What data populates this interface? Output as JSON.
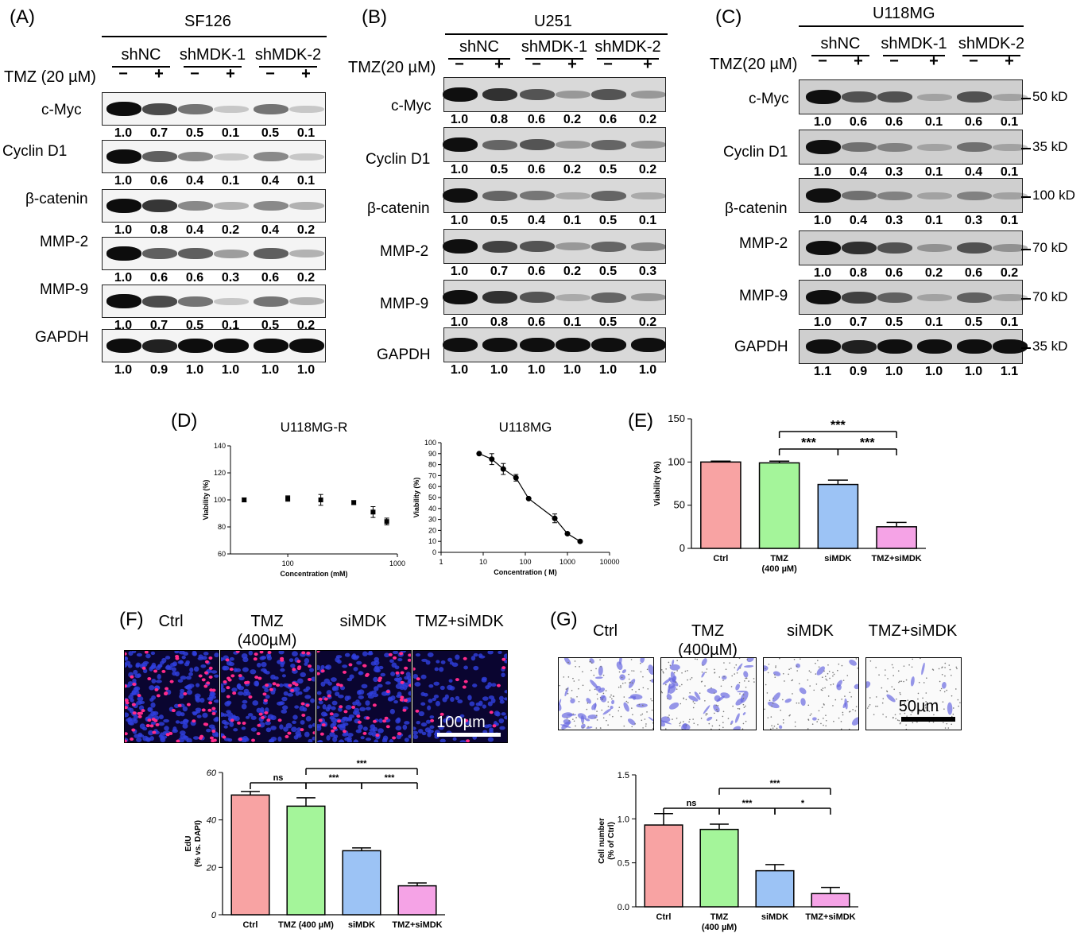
{
  "panels": {
    "A": {
      "label": "(A)",
      "cell_line": "SF126",
      "groups": [
        "shNC",
        "shMDK-1",
        "shMDK-2"
      ],
      "treatment": "TMZ (20 µM)",
      "signs": [
        "−",
        "+",
        "−",
        "+",
        "−",
        "+"
      ],
      "rows": [
        {
          "name": "c-Myc",
          "values": [
            "1.0",
            "0.7",
            "0.5",
            "0.1",
            "0.5",
            "0.1"
          ]
        },
        {
          "name": "Cyclin D1",
          "values": [
            "1.0",
            "0.6",
            "0.4",
            "0.1",
            "0.4",
            "0.1"
          ]
        },
        {
          "name": "β-catenin",
          "values": [
            "1.0",
            "0.8",
            "0.4",
            "0.2",
            "0.4",
            "0.2"
          ]
        },
        {
          "name": "MMP-2",
          "values": [
            "1.0",
            "0.6",
            "0.6",
            "0.3",
            "0.6",
            "0.2"
          ]
        },
        {
          "name": "MMP-9",
          "values": [
            "1.0",
            "0.7",
            "0.5",
            "0.1",
            "0.5",
            "0.2"
          ]
        },
        {
          "name": "GAPDH",
          "values": [
            "1.0",
            "0.9",
            "1.0",
            "1.0",
            "1.0",
            "1.0"
          ]
        }
      ]
    },
    "B": {
      "label": "(B)",
      "cell_line": "U251",
      "groups": [
        "shNC",
        "shMDK-1",
        "shMDK-2"
      ],
      "treatment": "TMZ(20 µM)",
      "signs": [
        "−",
        "+",
        "−",
        "+",
        "−",
        "+"
      ],
      "rows": [
        {
          "name": "c-Myc",
          "values": [
            "1.0",
            "0.8",
            "0.6",
            "0.2",
            "0.6",
            "0.2"
          ]
        },
        {
          "name": "Cyclin D1",
          "values": [
            "1.0",
            "0.5",
            "0.6",
            "0.2",
            "0.5",
            "0.2"
          ]
        },
        {
          "name": "β-catenin",
          "values": [
            "1.0",
            "0.5",
            "0.4",
            "0.1",
            "0.5",
            "0.1"
          ]
        },
        {
          "name": "MMP-2",
          "values": [
            "1.0",
            "0.7",
            "0.6",
            "0.2",
            "0.5",
            "0.3"
          ]
        },
        {
          "name": "MMP-9",
          "values": [
            "1.0",
            "0.8",
            "0.6",
            "0.1",
            "0.5",
            "0.2"
          ]
        },
        {
          "name": "GAPDH",
          "values": [
            "1.0",
            "1.0",
            "1.0",
            "1.0",
            "1.0",
            "1.0"
          ]
        }
      ]
    },
    "C": {
      "label": "(C)",
      "cell_line": "U118MG",
      "groups": [
        "shNC",
        "shMDK-1",
        "shMDK-2"
      ],
      "treatment": "TMZ(20 µM)",
      "signs": [
        "−",
        "+",
        "−",
        "+",
        "−",
        "+"
      ],
      "rows": [
        {
          "name": "c-Myc",
          "values": [
            "1.0",
            "0.6",
            "0.6",
            "0.1",
            "0.6",
            "0.1"
          ],
          "kd": "50 kD"
        },
        {
          "name": "Cyclin D1",
          "values": [
            "1.0",
            "0.4",
            "0.3",
            "0.1",
            "0.4",
            "0.1"
          ],
          "kd": "35 kD"
        },
        {
          "name": "β-catenin",
          "values": [
            "1.0",
            "0.4",
            "0.3",
            "0.1",
            "0.3",
            "0.1"
          ],
          "kd": "100 kD"
        },
        {
          "name": "MMP-2",
          "values": [
            "1.0",
            "0.8",
            "0.6",
            "0.2",
            "0.6",
            "0.2"
          ],
          "kd": "70 kD"
        },
        {
          "name": "MMP-9",
          "values": [
            "1.0",
            "0.7",
            "0.5",
            "0.1",
            "0.5",
            "0.1"
          ],
          "kd": "70 kD"
        },
        {
          "name": "GAPDH",
          "values": [
            "1.1",
            "0.9",
            "1.0",
            "1.0",
            "1.0",
            "1.1"
          ],
          "kd": "35 kD"
        }
      ]
    },
    "D": {
      "label": "(D)"
    },
    "E": {
      "label": "(E)"
    },
    "F": {
      "label": "(F)",
      "conditions": [
        "Ctrl",
        "TMZ\n(400µM)",
        "siMDK",
        "TMZ+siMDK"
      ],
      "scale": "100µm"
    },
    "G": {
      "label": "(G)",
      "conditions": [
        "Ctrl",
        "TMZ\n(400µM)",
        "siMDK",
        "TMZ+siMDK"
      ],
      "scale": "50µm"
    }
  },
  "chart_data": [
    {
      "id": "D-left",
      "type": "scatter",
      "title": "U118MG-R",
      "xlabel": "Concentration (mM)",
      "ylabel": "Viability (%)",
      "xscale": "log",
      "xlim": [
        30,
        1000
      ],
      "ylim": [
        60,
        140
      ],
      "yticks": [
        "60",
        "80",
        "100",
        "120",
        "140"
      ],
      "xticks": [
        "100",
        "1000"
      ],
      "x": [
        40,
        100,
        200,
        400,
        600,
        800
      ],
      "y": [
        100,
        101,
        100,
        98,
        91,
        84
      ],
      "err": [
        1.5,
        2,
        4,
        1.5,
        4,
        2.5
      ]
    },
    {
      "id": "D-right",
      "type": "line",
      "title": "U118MG",
      "xlabel": "Concentration (  M)",
      "ylabel": "Viability (%)",
      "xscale": "log",
      "xlim": [
        1,
        10000
      ],
      "ylim": [
        0,
        100
      ],
      "yticks": [
        "0",
        "10",
        "20",
        "30",
        "40",
        "50",
        "60",
        "70",
        "80",
        "90",
        "100"
      ],
      "xticks": [
        "1",
        "10",
        "100",
        "1000",
        "10000"
      ],
      "x": [
        8,
        16,
        30,
        60,
        120,
        500,
        1000,
        2000
      ],
      "y": [
        90,
        85,
        76,
        68,
        49,
        31,
        17,
        10
      ],
      "err": [
        0,
        5,
        5,
        3,
        0,
        4,
        0,
        0
      ]
    },
    {
      "id": "E",
      "type": "bar",
      "ylabel": "Viability (%)",
      "ylim": [
        0,
        150
      ],
      "yticks": [
        "0",
        "50",
        "100",
        "150"
      ],
      "categories": [
        "Ctrl",
        "TMZ\n(400 µM)",
        "siMDK",
        "TMZ+siMDK"
      ],
      "values": [
        100,
        99,
        74,
        25
      ],
      "err": [
        1,
        2,
        5,
        5
      ],
      "colors": [
        "#f8a3a3",
        "#a4f59a",
        "#9cc3f5",
        "#f5a3e6"
      ],
      "significance": [
        {
          "from": 1,
          "to": 2,
          "label": "***"
        },
        {
          "from": 2,
          "to": 3,
          "label": "***"
        },
        {
          "from": 1,
          "to": 3,
          "label": "***"
        }
      ]
    },
    {
      "id": "F",
      "type": "bar",
      "ylabel": "EdU\n(% vs. DAPI)",
      "ylim": [
        0,
        60
      ],
      "yticks": [
        "0",
        "20",
        "40",
        "60"
      ],
      "categories": [
        "Ctrl",
        "TMZ (400 µM)",
        "siMDK",
        "TMZ+siMDK"
      ],
      "values": [
        50.5,
        45.8,
        27,
        12.2
      ],
      "err": [
        1.5,
        3.5,
        1.2,
        1.2
      ],
      "colors": [
        "#f8a3a3",
        "#a4f59a",
        "#9cc3f5",
        "#f5a3e6"
      ],
      "significance": [
        {
          "from": 0,
          "to": 1,
          "label": "ns"
        },
        {
          "from": 1,
          "to": 2,
          "label": "***"
        },
        {
          "from": 2,
          "to": 3,
          "label": "***"
        },
        {
          "from": 1,
          "to": 3,
          "label": "***"
        }
      ]
    },
    {
      "id": "G",
      "type": "bar",
      "ylabel": "Cell number\n(% of Ctrl)",
      "ylim": [
        0,
        1.5
      ],
      "yticks": [
        "0.0",
        "0.5",
        "1.0",
        "1.5"
      ],
      "categories": [
        "Ctrl",
        "TMZ\n(400 µM)",
        "siMDK",
        "TMZ+siMDK"
      ],
      "values": [
        0.93,
        0.88,
        0.41,
        0.15
      ],
      "err": [
        0.13,
        0.06,
        0.07,
        0.07
      ],
      "colors": [
        "#f8a3a3",
        "#a4f59a",
        "#9cc3f5",
        "#f5a3e6"
      ],
      "significance": [
        {
          "from": 0,
          "to": 1,
          "label": "ns"
        },
        {
          "from": 1,
          "to": 2,
          "label": "***"
        },
        {
          "from": 2,
          "to": 3,
          "label": "*"
        },
        {
          "from": 1,
          "to": 3,
          "label": "***"
        }
      ]
    }
  ]
}
